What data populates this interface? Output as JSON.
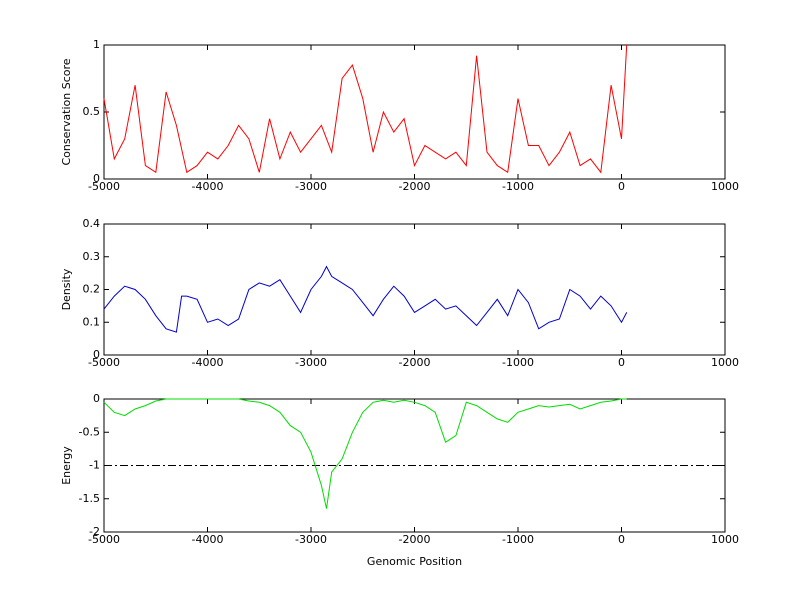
{
  "chart_data": [
    {
      "type": "line",
      "ylabel": "Conservation Score",
      "color": "#ff0000",
      "xlim": [
        -5000,
        1000
      ],
      "xticks": [
        -5000,
        -4000,
        -3000,
        -2000,
        -1000,
        0,
        1000
      ],
      "ylim": [
        0,
        1
      ],
      "yticks": [
        0,
        0.5,
        1
      ],
      "x": [
        -5000,
        -4900,
        -4800,
        -4700,
        -4600,
        -4500,
        -4400,
        -4300,
        -4200,
        -4100,
        -4000,
        -3900,
        -3800,
        -3700,
        -3600,
        -3500,
        -3400,
        -3300,
        -3200,
        -3100,
        -3000,
        -2900,
        -2800,
        -2700,
        -2600,
        -2500,
        -2400,
        -2300,
        -2200,
        -2100,
        -2000,
        -1900,
        -1800,
        -1700,
        -1600,
        -1500,
        -1400,
        -1300,
        -1200,
        -1100,
        -1000,
        -900,
        -800,
        -700,
        -600,
        -500,
        -400,
        -300,
        -200,
        -100,
        0,
        50
      ],
      "values": [
        0.6,
        0.15,
        0.3,
        0.7,
        0.1,
        0.05,
        0.65,
        0.4,
        0.05,
        0.1,
        0.2,
        0.15,
        0.25,
        0.4,
        0.3,
        0.05,
        0.45,
        0.15,
        0.35,
        0.2,
        0.3,
        0.4,
        0.2,
        0.75,
        0.85,
        0.6,
        0.2,
        0.5,
        0.35,
        0.45,
        0.1,
        0.25,
        0.2,
        0.15,
        0.2,
        0.1,
        0.92,
        0.2,
        0.1,
        0.05,
        0.6,
        0.25,
        0.25,
        0.1,
        0.2,
        0.35,
        0.1,
        0.15,
        0.05,
        0.7,
        0.3,
        1.0
      ]
    },
    {
      "type": "line",
      "ylabel": "Density",
      "color": "#0000cc",
      "xlim": [
        -5000,
        1000
      ],
      "xticks": [
        -5000,
        -4000,
        -3000,
        -2000,
        -1000,
        0,
        1000
      ],
      "ylim": [
        0,
        0.4
      ],
      "yticks": [
        0,
        0.1,
        0.2,
        0.3,
        0.4
      ],
      "x": [
        -5000,
        -4900,
        -4800,
        -4700,
        -4600,
        -4500,
        -4400,
        -4300,
        -4250,
        -4200,
        -4100,
        -4000,
        -3900,
        -3800,
        -3700,
        -3600,
        -3500,
        -3400,
        -3300,
        -3200,
        -3100,
        -3000,
        -2900,
        -2850,
        -2800,
        -2700,
        -2600,
        -2500,
        -2400,
        -2300,
        -2200,
        -2100,
        -2000,
        -1900,
        -1800,
        -1700,
        -1600,
        -1500,
        -1400,
        -1300,
        -1200,
        -1100,
        -1000,
        -900,
        -800,
        -700,
        -600,
        -500,
        -400,
        -300,
        -200,
        -100,
        0,
        50
      ],
      "values": [
        0.14,
        0.18,
        0.21,
        0.2,
        0.17,
        0.12,
        0.08,
        0.07,
        0.18,
        0.18,
        0.17,
        0.1,
        0.11,
        0.09,
        0.11,
        0.2,
        0.22,
        0.21,
        0.23,
        0.18,
        0.13,
        0.2,
        0.24,
        0.27,
        0.24,
        0.22,
        0.2,
        0.16,
        0.12,
        0.17,
        0.21,
        0.18,
        0.13,
        0.15,
        0.17,
        0.14,
        0.15,
        0.12,
        0.09,
        0.13,
        0.17,
        0.12,
        0.2,
        0.16,
        0.08,
        0.1,
        0.11,
        0.2,
        0.18,
        0.14,
        0.18,
        0.15,
        0.1,
        0.13
      ]
    },
    {
      "type": "line",
      "ylabel": "Energy",
      "xlabel": "Genomic Position",
      "color": "#00dd00",
      "hline": -1,
      "xlim": [
        -5000,
        1000
      ],
      "xticks": [
        -5000,
        -4000,
        -3000,
        -2000,
        -1000,
        0,
        1000
      ],
      "ylim": [
        -2,
        0
      ],
      "yticks": [
        -2,
        -1.5,
        -1,
        -0.5,
        0
      ],
      "x": [
        -5000,
        -4900,
        -4800,
        -4700,
        -4600,
        -4500,
        -4400,
        -4300,
        -4200,
        -4100,
        -4000,
        -3900,
        -3800,
        -3700,
        -3600,
        -3500,
        -3400,
        -3300,
        -3200,
        -3100,
        -3000,
        -2950,
        -2900,
        -2850,
        -2800,
        -2700,
        -2600,
        -2500,
        -2400,
        -2300,
        -2200,
        -2100,
        -2000,
        -1900,
        -1800,
        -1700,
        -1600,
        -1500,
        -1400,
        -1300,
        -1200,
        -1100,
        -1000,
        -900,
        -800,
        -700,
        -600,
        -500,
        -400,
        -300,
        -200,
        -100,
        0,
        50
      ],
      "values": [
        -0.05,
        -0.2,
        -0.25,
        -0.15,
        -0.1,
        -0.03,
        0,
        0,
        0,
        0,
        0,
        0,
        0,
        0,
        -0.03,
        -0.05,
        -0.1,
        -0.2,
        -0.4,
        -0.5,
        -0.8,
        -1.05,
        -1.3,
        -1.65,
        -1.1,
        -0.9,
        -0.5,
        -0.2,
        -0.05,
        -0.02,
        -0.05,
        -0.02,
        -0.05,
        -0.1,
        -0.2,
        -0.65,
        -0.55,
        -0.05,
        -0.1,
        -0.2,
        -0.3,
        -0.35,
        -0.2,
        -0.15,
        -0.1,
        -0.12,
        -0.1,
        -0.08,
        -0.15,
        -0.1,
        -0.05,
        -0.03,
        0,
        0
      ]
    }
  ]
}
